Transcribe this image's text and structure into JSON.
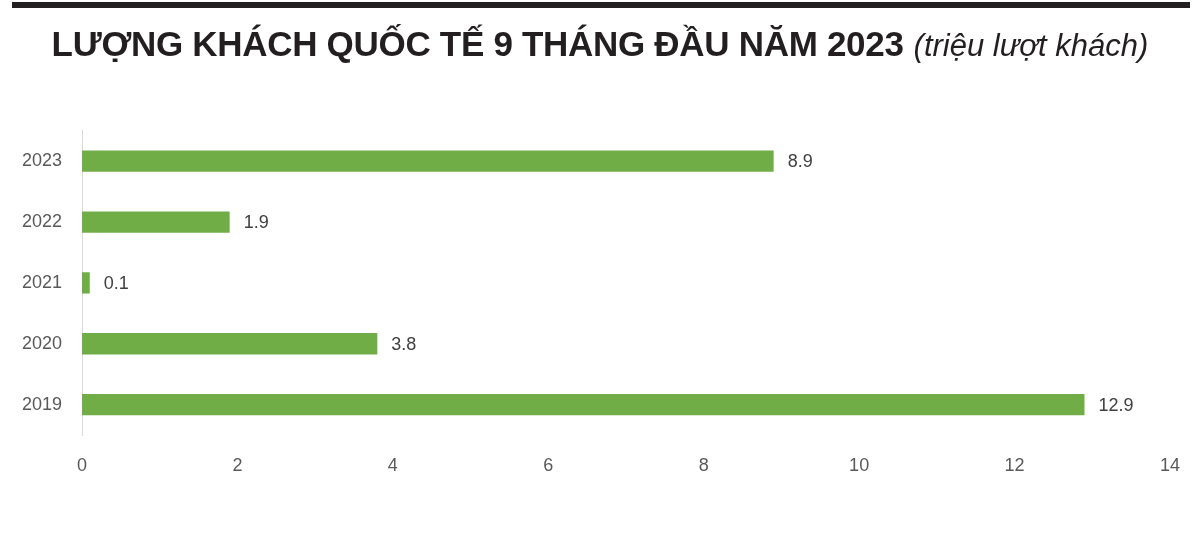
{
  "chart_data": {
    "type": "bar",
    "orientation": "horizontal",
    "title": "LƯỢNG KHÁCH QUỐC TẾ 9 THÁNG ĐẦU NĂM 2023",
    "subtitle": "(triệu lượt khách)",
    "categories": [
      "2023",
      "2022",
      "2021",
      "2020",
      "2019"
    ],
    "values": [
      8.9,
      1.9,
      0.1,
      3.8,
      12.9
    ],
    "color": "#70ad47",
    "xlim": [
      0,
      14
    ],
    "xticks": [
      0,
      2,
      4,
      6,
      8,
      10,
      12,
      14
    ],
    "grid": false,
    "data_labels": true
  }
}
